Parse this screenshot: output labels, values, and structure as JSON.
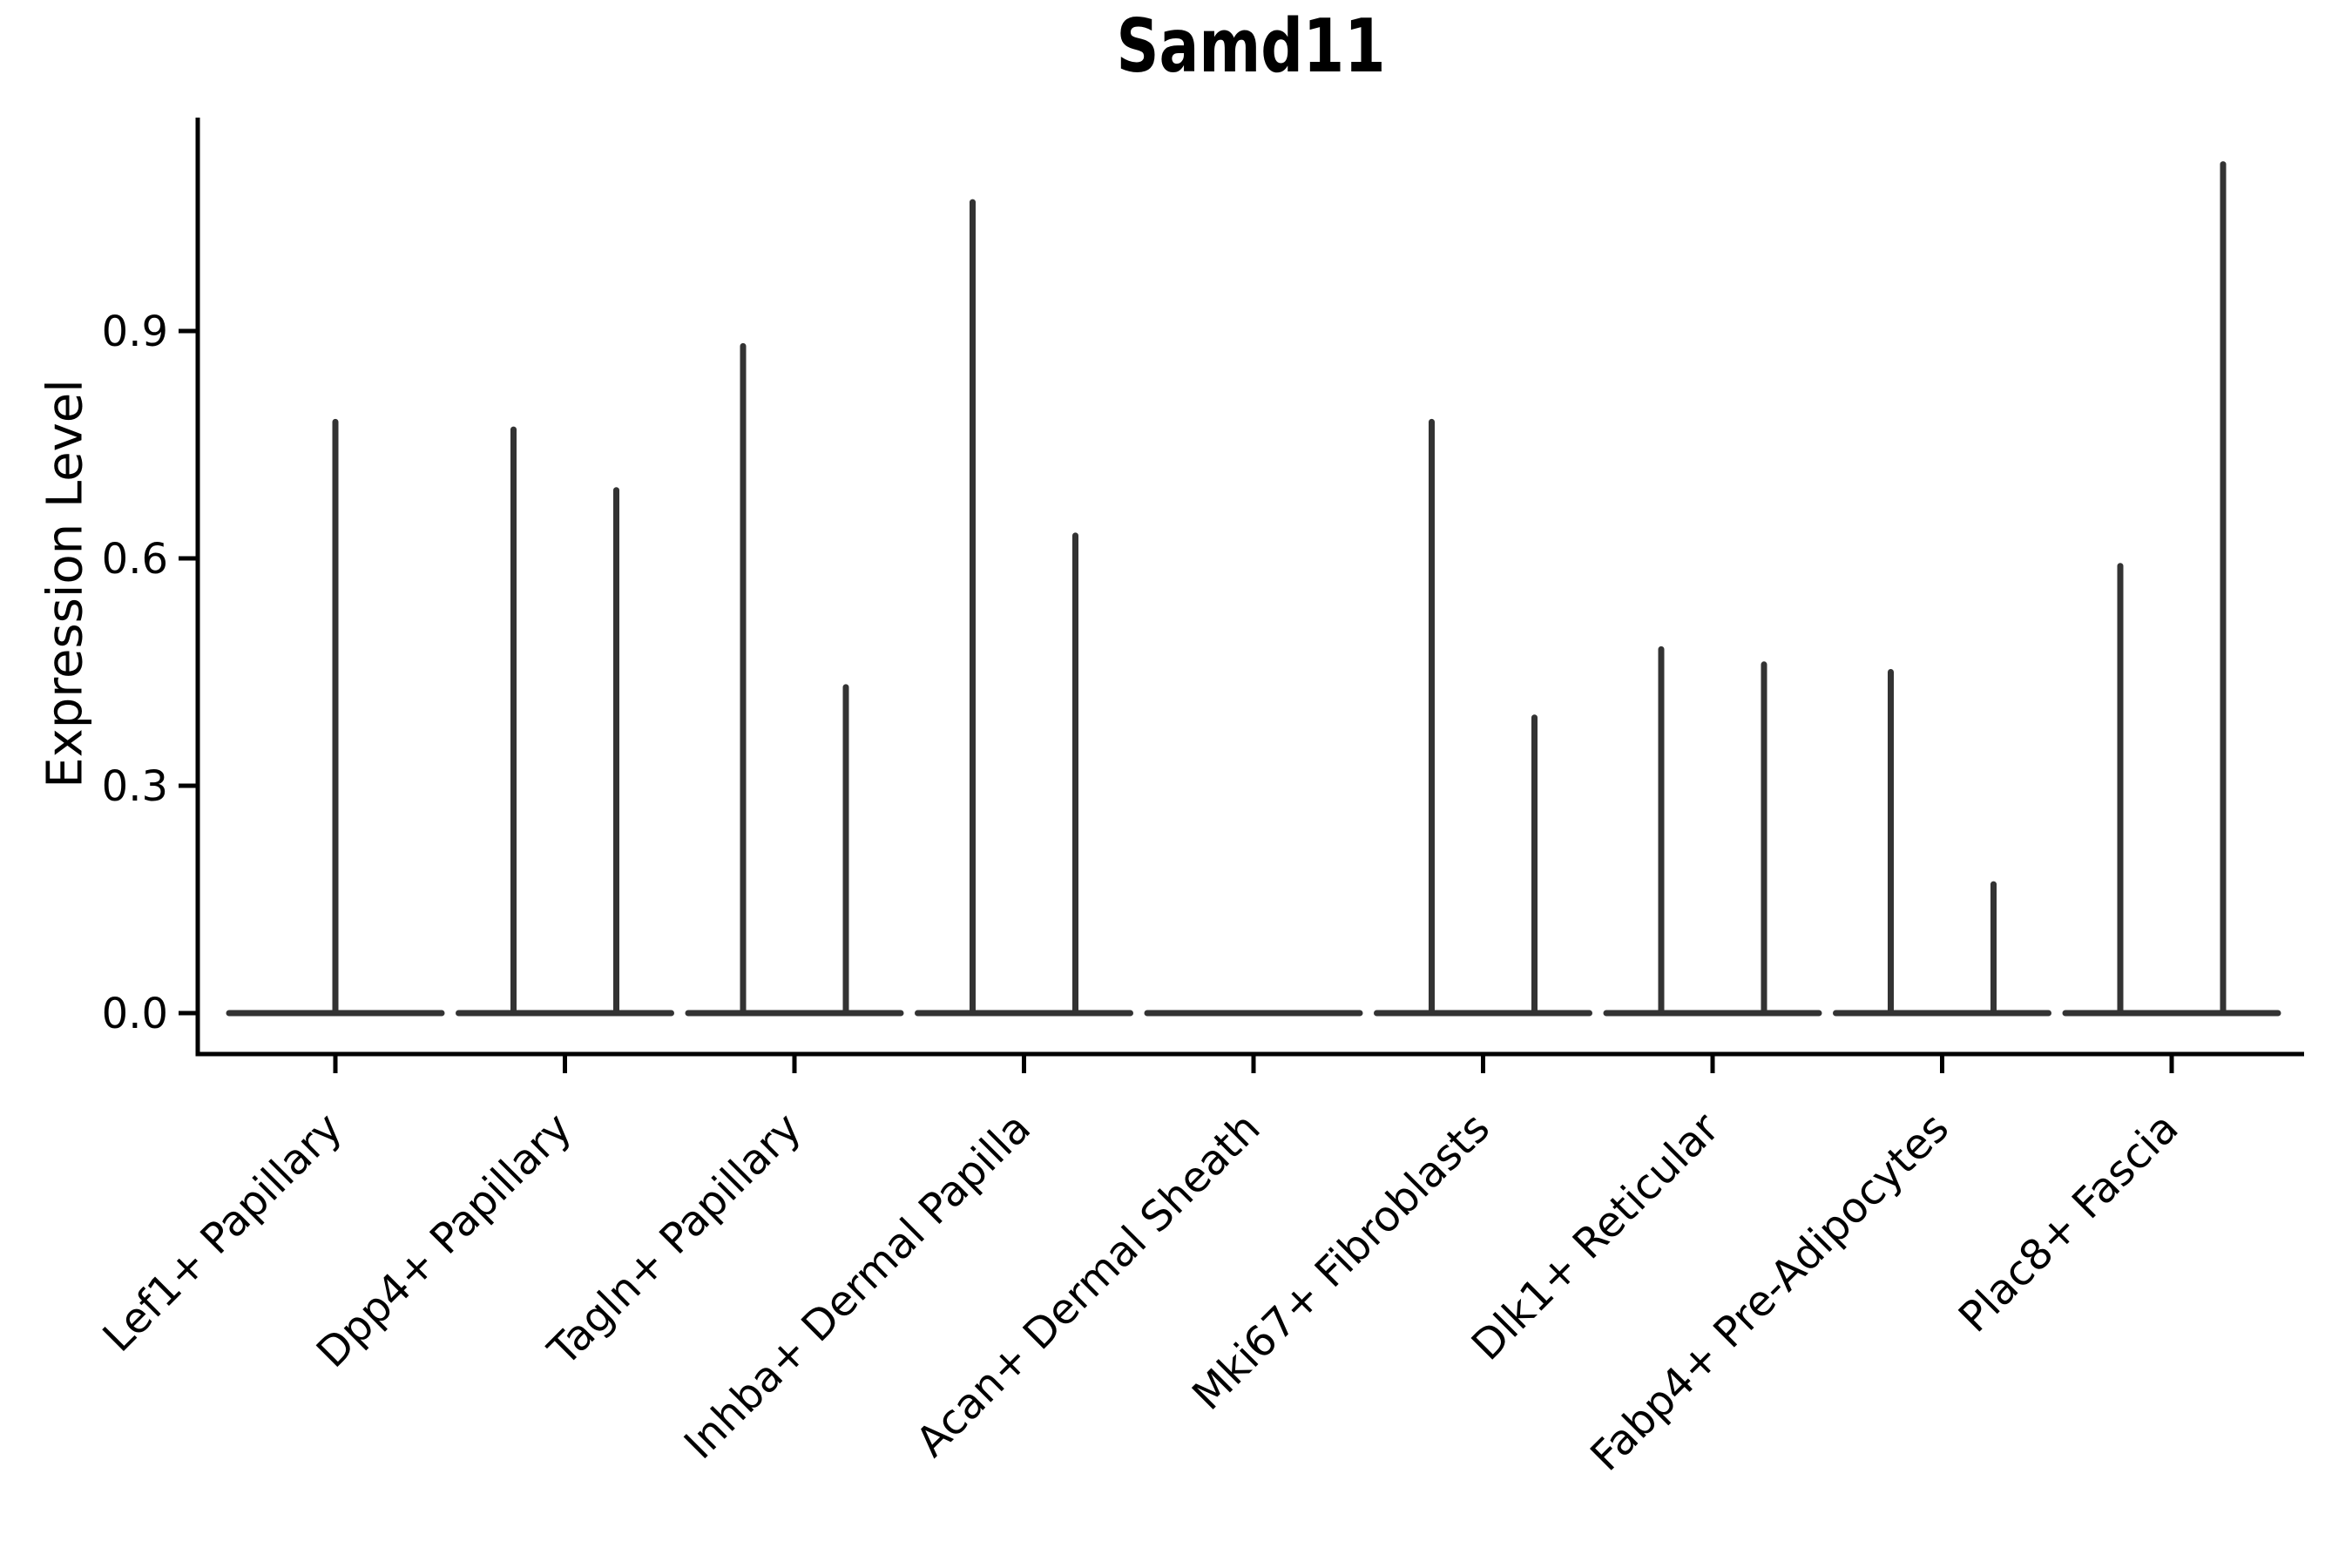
{
  "page": {
    "background": "#ffffff"
  },
  "chart_data": {
    "type": "violin",
    "title": "Samd11",
    "xlabel": "",
    "ylabel": "Expression Level",
    "legend": "none",
    "grid": false,
    "ylim": [
      -0.05,
      1.18
    ],
    "yticks": [
      {
        "label": "0.0",
        "value": 0.0
      },
      {
        "label": "0.3",
        "value": 0.3
      },
      {
        "label": "0.6",
        "value": 0.6
      },
      {
        "label": "0.9",
        "value": 0.9
      }
    ],
    "categories": [
      "Lef1+ Papillary",
      "Dpp4+ Papillary",
      "Tagln+ Papillary",
      "Inhba+ Dermal Papilla",
      "Acan+ Dermal Sheath",
      "Mki67+ Fibroblasts",
      "Dlk1+ Reticular",
      "Fabp4+ Pre-Adipocytes",
      "Plac8+ Fascia"
    ],
    "violins": [
      {
        "category": "Lef1+ Papillary",
        "baseline": 0.0,
        "spike_maxima": [
          0.78
        ]
      },
      {
        "category": "Dpp4+ Papillary",
        "baseline": 0.0,
        "spike_maxima": [
          0.77,
          0.69
        ]
      },
      {
        "category": "Tagln+ Papillary",
        "baseline": 0.0,
        "spike_maxima": [
          0.88,
          0.43
        ]
      },
      {
        "category": "Inhba+ Dermal Papilla",
        "baseline": 0.0,
        "spike_maxima": [
          1.07,
          0.63
        ]
      },
      {
        "category": "Acan+ Dermal Sheath",
        "baseline": 0.0,
        "spike_maxima": []
      },
      {
        "category": "Mki67+ Fibroblasts",
        "baseline": 0.0,
        "spike_maxima": [
          0.78,
          0.39
        ]
      },
      {
        "category": "Dlk1+ Reticular",
        "baseline": 0.0,
        "spike_maxima": [
          0.48,
          0.46
        ]
      },
      {
        "category": "Fabp4+ Pre-Adipocytes",
        "baseline": 0.0,
        "spike_maxima": [
          0.45,
          0.17
        ]
      },
      {
        "category": "Plac8+ Fascia",
        "baseline": 0.0,
        "spike_maxima": [
          0.59,
          1.12
        ]
      }
    ],
    "colors": {
      "violin_line": "#333333",
      "axis": "#000000",
      "text": "#000000",
      "background": "#ffffff"
    }
  }
}
